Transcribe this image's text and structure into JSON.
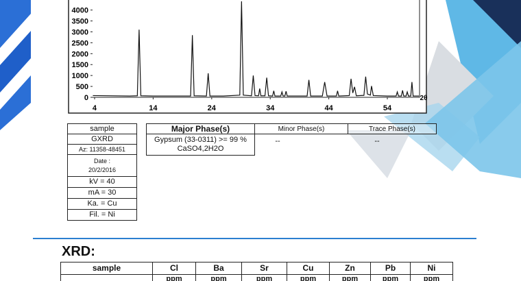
{
  "chart_data": {
    "type": "line",
    "x_label": "2θ",
    "x": [
      3.7,
      10,
      11.3,
      11.6,
      11.9,
      14,
      20.4,
      20.7,
      21,
      23.1,
      23.4,
      23.7,
      26,
      28.8,
      29.1,
      29.4,
      30.8,
      31.1,
      31.4,
      32,
      32.2,
      32.4,
      33.1,
      33.4,
      33.7,
      34.4,
      34.6,
      34.8,
      35.8,
      36,
      36.2,
      36.5,
      36.7,
      36.9,
      38,
      40.3,
      40.6,
      40.9,
      42.9,
      43.3,
      43.7,
      45.3,
      45.5,
      45.7,
      47.5,
      47.8,
      48.1,
      48.4,
      48.7,
      50,
      50.3,
      50.6,
      51.1,
      51.3,
      51.6,
      54,
      55.5,
      55.7,
      55.9,
      56.4,
      56.6,
      56.8,
      57.2,
      57.4,
      57.6,
      58,
      58.2,
      58.4,
      59.4
    ],
    "series": [
      {
        "color": "#111111",
        "values": [
          80,
          60,
          70,
          3100,
          70,
          60,
          60,
          2850,
          70,
          60,
          1100,
          60,
          60,
          100,
          4400,
          100,
          70,
          1000,
          80,
          70,
          400,
          70,
          70,
          900,
          70,
          60,
          300,
          60,
          60,
          250,
          60,
          60,
          280,
          60,
          60,
          60,
          800,
          60,
          60,
          700,
          60,
          60,
          300,
          60,
          80,
          850,
          200,
          480,
          70,
          90,
          950,
          150,
          100,
          520,
          80,
          60,
          60,
          250,
          60,
          60,
          320,
          60,
          60,
          250,
          60,
          60,
          700,
          60,
          60
        ]
      }
    ],
    "xlim": [
      3.65,
      59.5
    ],
    "ylim": [
      0,
      4460
    ],
    "xticks": [
      4,
      14,
      24,
      34,
      44,
      54
    ],
    "yticks": [
      0,
      500,
      1000,
      1500,
      2000,
      2500,
      3000,
      3500,
      4000
    ]
  },
  "sample_info": {
    "rows": [
      "sample",
      "GXRD",
      "Az: 11358-48451",
      "Date :",
      "20/2/2016",
      "kV = 40",
      "mA = 30",
      "Ka. = Cu",
      "Fil. = Ni"
    ]
  },
  "phases": {
    "headers": [
      "Major Phase(s)",
      "Minor Phase(s)",
      "Trace Phase(s)"
    ],
    "major": [
      "Gypsum (33-0311) >= 99 %",
      "CaSO4,2H2O"
    ],
    "minor": "--",
    "trace": "--"
  },
  "xrd": {
    "title": "XRD:",
    "headers": [
      "sample",
      "Cl",
      "Ba",
      "Sr",
      "Cu",
      "Zn",
      "Pb",
      "Ni"
    ],
    "units": [
      "ppm",
      "ppm",
      "ppm",
      "ppm",
      "ppm",
      "ppm",
      "ppm"
    ]
  }
}
